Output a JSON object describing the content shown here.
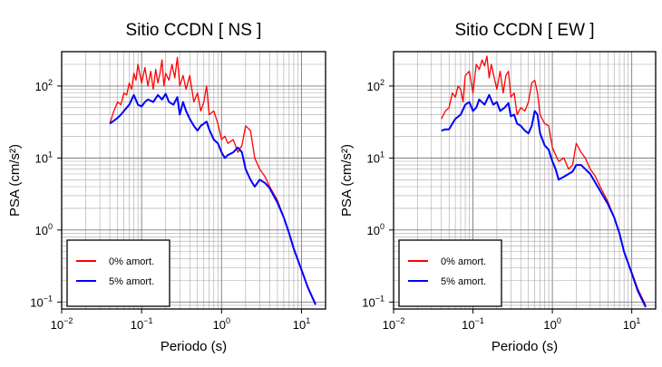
{
  "chart_data": [
    {
      "type": "line",
      "title": "Sitio CCDN [ NS ]",
      "xlabel": "Periodo (s)",
      "ylabel": "PSA (cm/s²)",
      "xscale": "log",
      "yscale": "log",
      "xlim": [
        0.01,
        20
      ],
      "ylim": [
        0.08,
        300
      ],
      "grid": true,
      "legend_position": "bottom-left",
      "x_ticks": [
        {
          "base": "10",
          "exp": "−2"
        },
        {
          "base": "10",
          "exp": "−1"
        },
        {
          "base": "10",
          "exp": "0"
        },
        {
          "base": "10",
          "exp": "1"
        }
      ],
      "y_ticks": [
        {
          "base": "10",
          "exp": "−1"
        },
        {
          "base": "10",
          "exp": "0"
        },
        {
          "base": "10",
          "exp": "1"
        },
        {
          "base": "10",
          "exp": "2"
        }
      ],
      "series": [
        {
          "name": "0% amort.",
          "color": "#ff0000",
          "x": [
            0.04,
            0.045,
            0.05,
            0.055,
            0.06,
            0.065,
            0.07,
            0.075,
            0.08,
            0.085,
            0.09,
            0.1,
            0.11,
            0.12,
            0.13,
            0.14,
            0.15,
            0.16,
            0.17,
            0.18,
            0.19,
            0.2,
            0.22,
            0.24,
            0.26,
            0.28,
            0.3,
            0.33,
            0.36,
            0.4,
            0.45,
            0.5,
            0.55,
            0.6,
            0.65,
            0.7,
            0.8,
            0.9,
            1.0,
            1.1,
            1.2,
            1.4,
            1.6,
            1.8,
            2.0,
            2.3,
            2.6,
            3.0,
            3.5,
            4.0,
            5.0,
            6.0,
            7.0,
            8.0,
            10.0,
            12.0,
            15.0
          ],
          "y": [
            30,
            45,
            60,
            55,
            80,
            75,
            110,
            90,
            150,
            120,
            200,
            110,
            180,
            100,
            160,
            90,
            170,
            110,
            150,
            230,
            100,
            150,
            120,
            200,
            130,
            250,
            100,
            140,
            90,
            140,
            60,
            80,
            45,
            60,
            100,
            40,
            45,
            30,
            18,
            20,
            16,
            18,
            12,
            15,
            28,
            24,
            10,
            7,
            5.5,
            4,
            2.6,
            1.5,
            0.9,
            0.55,
            0.28,
            0.16,
            0.095
          ]
        },
        {
          "name": "5% amort.",
          "color": "#0000ff",
          "x": [
            0.04,
            0.045,
            0.05,
            0.055,
            0.06,
            0.07,
            0.08,
            0.09,
            0.1,
            0.11,
            0.12,
            0.14,
            0.16,
            0.18,
            0.2,
            0.22,
            0.25,
            0.28,
            0.3,
            0.33,
            0.36,
            0.4,
            0.45,
            0.5,
            0.55,
            0.6,
            0.65,
            0.7,
            0.8,
            0.9,
            1.0,
            1.1,
            1.2,
            1.4,
            1.6,
            1.8,
            2.0,
            2.3,
            2.6,
            3.0,
            3.5,
            4.0,
            5.0,
            6.0,
            7.0,
            8.0,
            10.0,
            12.0,
            15.0
          ],
          "y": [
            30,
            33,
            36,
            40,
            45,
            55,
            75,
            55,
            52,
            60,
            65,
            60,
            75,
            65,
            78,
            60,
            55,
            70,
            40,
            60,
            45,
            35,
            28,
            24,
            28,
            30,
            32,
            25,
            18,
            16,
            12,
            10,
            11,
            12,
            14,
            12,
            7,
            5,
            4,
            5,
            4.5,
            3.8,
            2.4,
            1.5,
            0.9,
            0.55,
            0.28,
            0.16,
            0.092
          ]
        }
      ]
    },
    {
      "type": "line",
      "title": "Sitio CCDN [ EW ]",
      "xlabel": "Periodo (s)",
      "ylabel": "PSA (cm/s²)",
      "xscale": "log",
      "yscale": "log",
      "xlim": [
        0.01,
        20
      ],
      "ylim": [
        0.08,
        300
      ],
      "grid": true,
      "legend_position": "bottom-left",
      "x_ticks": [
        {
          "base": "10",
          "exp": "−2"
        },
        {
          "base": "10",
          "exp": "−1"
        },
        {
          "base": "10",
          "exp": "0"
        },
        {
          "base": "10",
          "exp": "1"
        }
      ],
      "y_ticks": [
        {
          "base": "10",
          "exp": "−1"
        },
        {
          "base": "10",
          "exp": "0"
        },
        {
          "base": "10",
          "exp": "1"
        },
        {
          "base": "10",
          "exp": "2"
        }
      ],
      "series": [
        {
          "name": "0% amort.",
          "color": "#ff0000",
          "x": [
            0.04,
            0.045,
            0.05,
            0.055,
            0.06,
            0.065,
            0.07,
            0.075,
            0.08,
            0.09,
            0.1,
            0.11,
            0.12,
            0.13,
            0.14,
            0.15,
            0.16,
            0.17,
            0.18,
            0.2,
            0.22,
            0.24,
            0.26,
            0.28,
            0.3,
            0.33,
            0.36,
            0.4,
            0.45,
            0.5,
            0.55,
            0.6,
            0.65,
            0.7,
            0.8,
            0.9,
            1.0,
            1.1,
            1.2,
            1.4,
            1.6,
            1.8,
            2.0,
            2.3,
            2.6,
            3.0,
            3.5,
            4.0,
            5.0,
            6.0,
            7.0,
            8.0,
            10.0,
            12.0,
            15.0
          ],
          "y": [
            35,
            45,
            50,
            80,
            70,
            100,
            90,
            60,
            140,
            160,
            80,
            200,
            170,
            230,
            190,
            260,
            130,
            200,
            150,
            90,
            160,
            80,
            140,
            160,
            70,
            80,
            40,
            50,
            45,
            60,
            110,
            120,
            80,
            40,
            30,
            28,
            14,
            11,
            9,
            10,
            7,
            8,
            16,
            12,
            10,
            7,
            5.5,
            4,
            2.5,
            1.5,
            0.9,
            0.5,
            0.26,
            0.15,
            0.09
          ]
        },
        {
          "name": "5% amort.",
          "color": "#0000ff",
          "x": [
            0.04,
            0.045,
            0.05,
            0.055,
            0.06,
            0.07,
            0.08,
            0.09,
            0.1,
            0.11,
            0.12,
            0.14,
            0.16,
            0.18,
            0.2,
            0.22,
            0.25,
            0.28,
            0.3,
            0.33,
            0.36,
            0.4,
            0.45,
            0.5,
            0.55,
            0.6,
            0.65,
            0.7,
            0.8,
            0.9,
            1.0,
            1.1,
            1.2,
            1.4,
            1.6,
            1.8,
            2.0,
            2.3,
            2.6,
            3.0,
            3.5,
            4.0,
            5.0,
            6.0,
            7.0,
            8.0,
            10.0,
            12.0,
            15.0
          ],
          "y": [
            24,
            25,
            25,
            30,
            35,
            40,
            55,
            60,
            45,
            50,
            65,
            55,
            75,
            55,
            60,
            45,
            50,
            58,
            38,
            40,
            30,
            28,
            24,
            22,
            28,
            45,
            40,
            22,
            15,
            13,
            9,
            7,
            5,
            5.5,
            6,
            6.5,
            8,
            8,
            7,
            6,
            4.5,
            3.5,
            2.3,
            1.5,
            0.9,
            0.5,
            0.25,
            0.14,
            0.085
          ]
        }
      ]
    }
  ]
}
